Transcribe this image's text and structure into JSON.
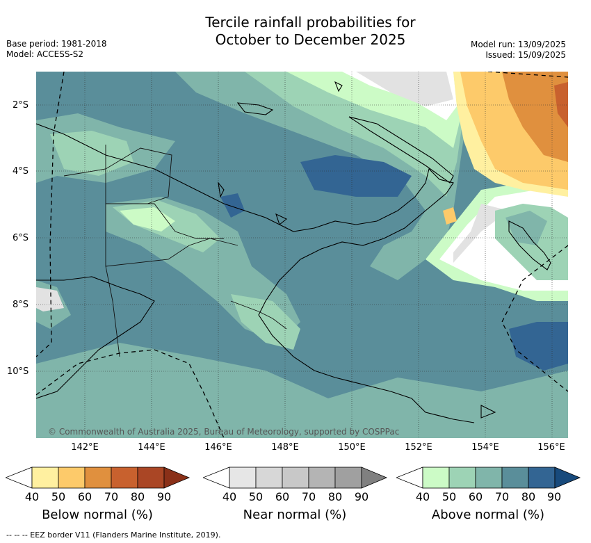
{
  "title_line1": "Tercile rainfall probabilities for",
  "title_line2": "October to December 2025",
  "base_period": "Base period: 1981-2018",
  "model": "Model: ACCESS-S2",
  "model_run": "Model run: 13/09/2025",
  "issued": "Issued: 15/09/2025",
  "y_ticks": [
    "2°S",
    "4°S",
    "6°S",
    "8°S",
    "10°S"
  ],
  "x_ticks": [
    "142°E",
    "144°E",
    "146°E",
    "148°E",
    "150°E",
    "152°E",
    "154°E",
    "156°E"
  ],
  "copyright": "© Commonwealth of Australia 2025, Bureau of Meteorology, supported by COSPPac",
  "colorbars": [
    {
      "label": "Below normal (%)",
      "ticks": [
        "40",
        "50",
        "60",
        "70",
        "80",
        "90"
      ],
      "colors": [
        "#ffffff",
        "#fff0a0",
        "#fdca6a",
        "#e0903e",
        "#c8612e",
        "#aa4625",
        "#8a3018"
      ]
    },
    {
      "label": "Near normal (%)",
      "ticks": [
        "40",
        "50",
        "60",
        "70",
        "80",
        "90"
      ],
      "colors": [
        "#ffffff",
        "#e6e6e6",
        "#d7d7d7",
        "#c8c8c8",
        "#b4b4b4",
        "#a0a0a0",
        "#808080"
      ]
    },
    {
      "label": "Above normal (%)",
      "ticks": [
        "40",
        "50",
        "60",
        "70",
        "80",
        "90"
      ],
      "colors": [
        "#ffffff",
        "#ccfbc6",
        "#9dd3b5",
        "#80b5aa",
        "#5a8e9a",
        "#336593",
        "#184a7c"
      ]
    }
  ],
  "footer": "--  --  -- EEZ border V11 (Flanders Marine Institute, 2019)."
}
